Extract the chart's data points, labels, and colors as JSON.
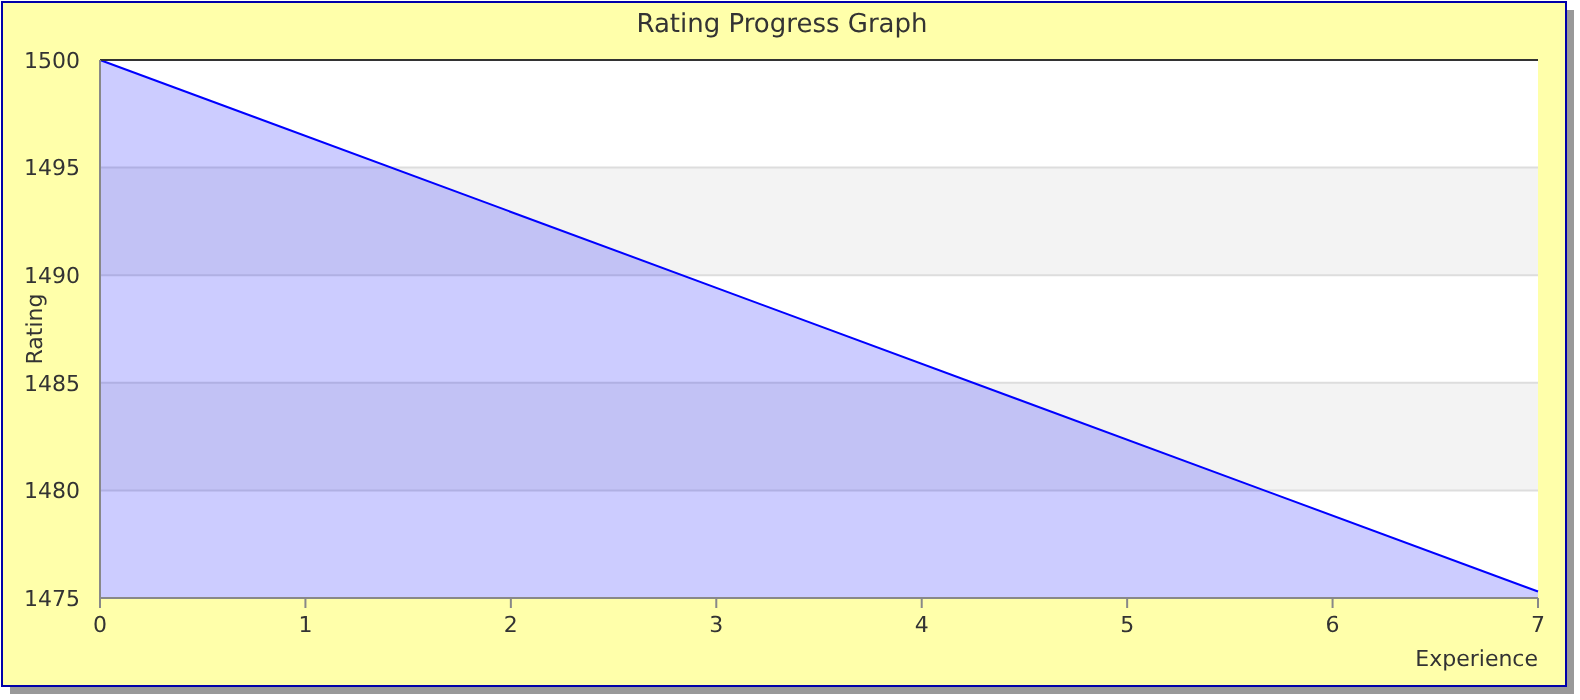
{
  "chart_data": {
    "type": "area",
    "title": "Rating Progress Graph",
    "xlabel": "Experience",
    "ylabel": "Rating",
    "x": [
      0,
      7
    ],
    "series": [
      {
        "color": "#0000ff",
        "values": [
          1500,
          1475.3
        ]
      }
    ],
    "xlim": [
      0,
      7
    ],
    "xticks": [
      0,
      1,
      2,
      3,
      4,
      5,
      6,
      7
    ],
    "ylim": [
      1475,
      1500
    ],
    "yticks": [
      1475,
      1480,
      1485,
      1490,
      1495,
      1500
    ],
    "bands": [
      {
        "axis": "y",
        "from": 1490,
        "to": 1495,
        "color": "#f3f3f3"
      },
      {
        "axis": "y",
        "from": 1480,
        "to": 1485,
        "color": "#f3f3f3"
      }
    ],
    "grid": "y"
  }
}
